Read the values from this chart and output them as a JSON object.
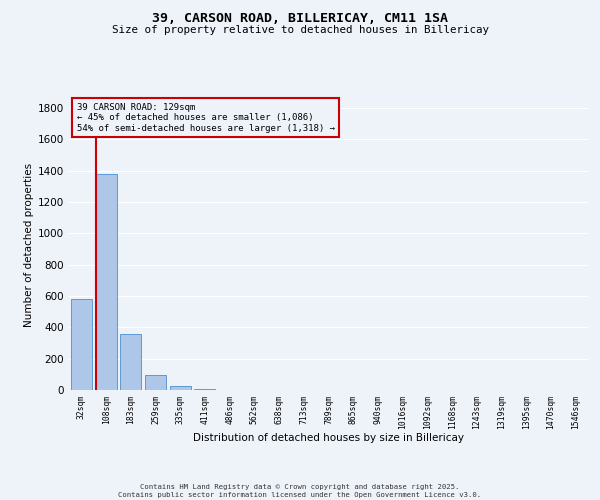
{
  "title_line1": "39, CARSON ROAD, BILLERICAY, CM11 1SA",
  "title_line2": "Size of property relative to detached houses in Billericay",
  "xlabel": "Distribution of detached houses by size in Billericay",
  "ylabel": "Number of detached properties",
  "categories": [
    "32sqm",
    "108sqm",
    "183sqm",
    "259sqm",
    "335sqm",
    "411sqm",
    "486sqm",
    "562sqm",
    "638sqm",
    "713sqm",
    "789sqm",
    "865sqm",
    "940sqm",
    "1016sqm",
    "1092sqm",
    "1168sqm",
    "1243sqm",
    "1319sqm",
    "1395sqm",
    "1470sqm",
    "1546sqm"
  ],
  "values": [
    580,
    1375,
    355,
    95,
    25,
    8,
    0,
    0,
    0,
    0,
    0,
    0,
    0,
    0,
    0,
    0,
    0,
    0,
    0,
    0,
    0
  ],
  "bar_color": "#aec6e8",
  "bar_edge_color": "#5b9bd5",
  "vline_color": "#cc0000",
  "annotation_text": "39 CARSON ROAD: 129sqm\n← 45% of detached houses are smaller (1,086)\n54% of semi-detached houses are larger (1,318) →",
  "ylim": [
    0,
    1850
  ],
  "yticks": [
    0,
    200,
    400,
    600,
    800,
    1000,
    1200,
    1400,
    1600,
    1800
  ],
  "background_color": "#eef2f9",
  "grid_color": "#ffffff",
  "footer_text": "Contains HM Land Registry data © Crown copyright and database right 2025.\nContains public sector information licensed under the Open Government Licence v3.0."
}
